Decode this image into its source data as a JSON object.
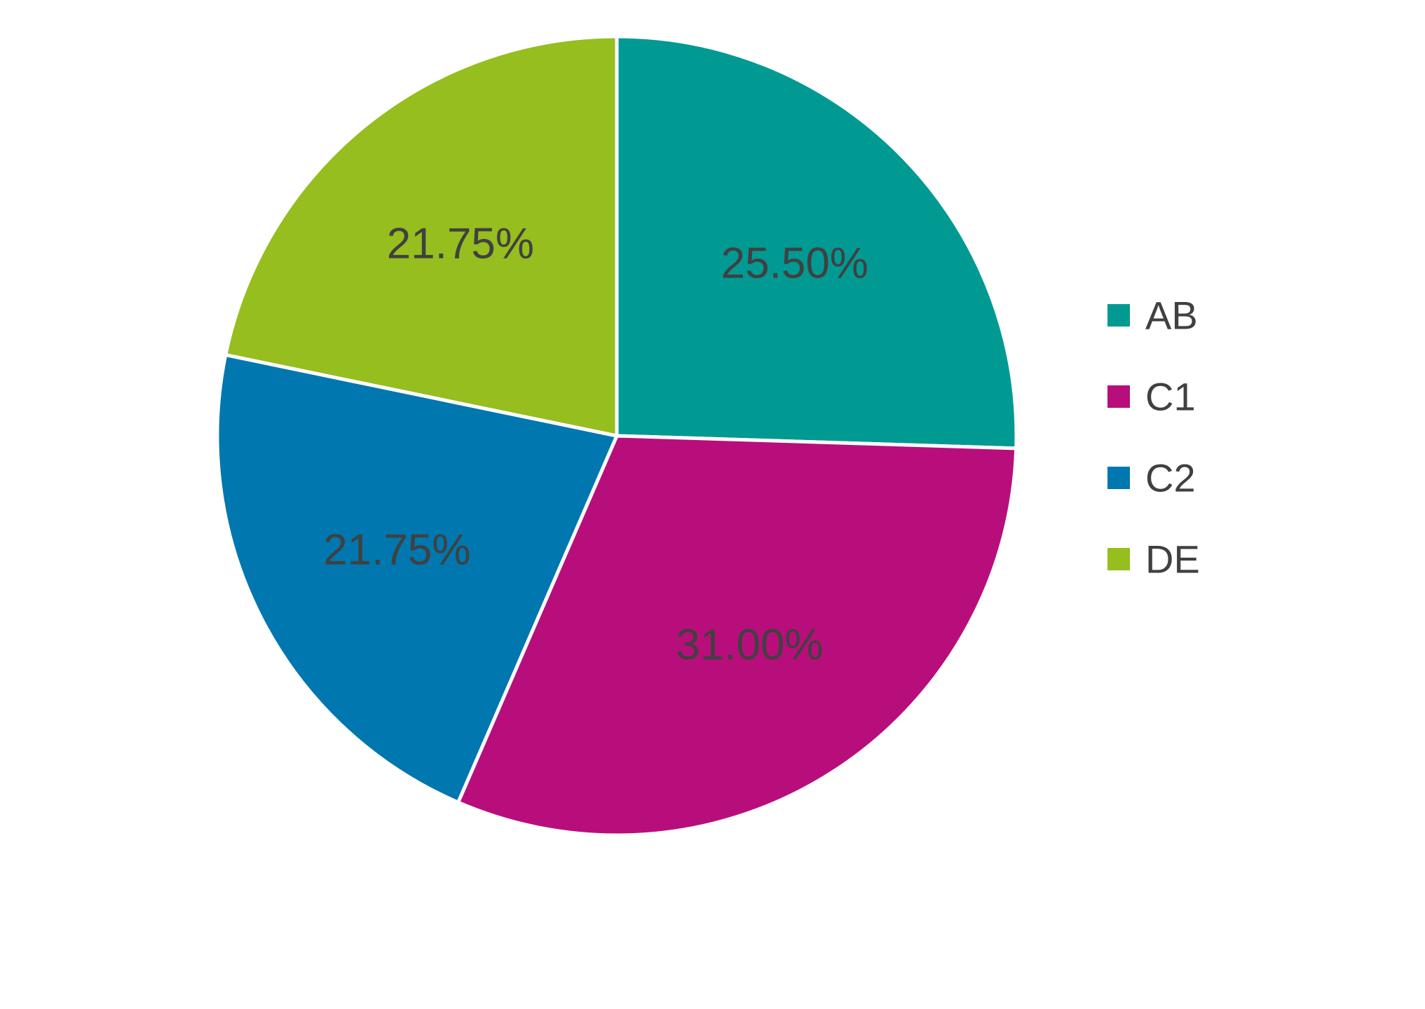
{
  "chart_data": {
    "type": "pie",
    "title": "",
    "categories": [
      "AB",
      "C1",
      "C2",
      "DE"
    ],
    "values": [
      25.5,
      31.0,
      21.75,
      21.75
    ],
    "data_labels": [
      "25.50%",
      "31.00%",
      "21.75%",
      "21.75%"
    ],
    "colors": [
      "#009A93",
      "#B80E7C",
      "#0077AE",
      "#96BE1E"
    ],
    "start_angle": "12 o'clock",
    "direction": "clockwise",
    "legend": {
      "placement": "right",
      "entries": [
        "AB",
        "C1",
        "C2",
        "DE"
      ]
    }
  }
}
